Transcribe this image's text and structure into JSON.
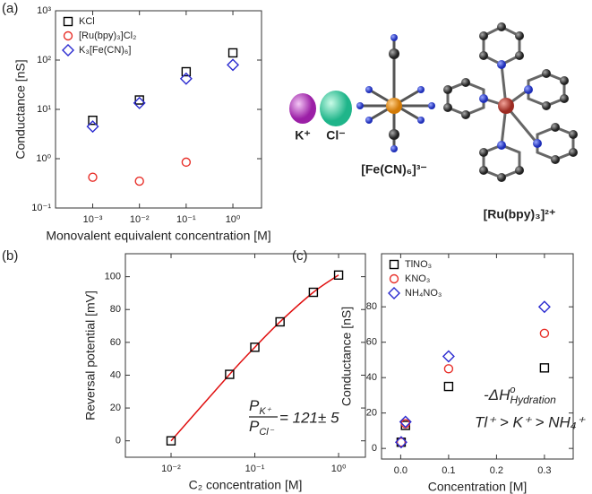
{
  "panel_labels": [
    "(a)",
    "(b)",
    "(c)"
  ],
  "molecule_labels": [
    "K⁺",
    "Cl⁻",
    "[Fe(CN)₆]³⁻",
    "[Ru(bpy)₃]²⁺"
  ],
  "chart_data": [
    {
      "type": "scatter",
      "xlabel": "Monovalent equivalent concentration [M]",
      "ylabel": "Conductance [nS]",
      "xlog": true,
      "ylog": true,
      "xlim": [
        0.00016,
        4.1
      ],
      "ylim": [
        0.1,
        1000
      ],
      "xticks": [
        {
          "value": 0.001,
          "label": "10⁻³"
        },
        {
          "value": 0.01,
          "label": "10⁻²"
        },
        {
          "value": 0.1,
          "label": "10⁻¹"
        },
        {
          "value": 1,
          "label": "10⁰"
        }
      ],
      "yticks": [
        {
          "value": 0.1,
          "label": "10⁻¹"
        },
        {
          "value": 1,
          "label": "10⁰"
        },
        {
          "value": 10,
          "label": "10¹"
        },
        {
          "value": 100,
          "label": "10²"
        },
        {
          "value": 1000,
          "label": "10³"
        }
      ],
      "legend": "upper left",
      "series": [
        {
          "name": "KCl",
          "color": "#000000",
          "marker": "square",
          "x": [
            0.001,
            0.01,
            0.1,
            1
          ],
          "values": [
            6,
            15.5,
            58,
            140
          ]
        },
        {
          "name": "[Ru(bpy)₃]Cl₂",
          "color": "#e8302a",
          "marker": "circle",
          "x": [
            0.001,
            0.01,
            0.1
          ],
          "values": [
            0.42,
            0.35,
            0.85
          ]
        },
        {
          "name": "K₃[Fe(CN)₆]",
          "color": "#2b2bd0",
          "marker": "diamond",
          "x": [
            0.001,
            0.01,
            0.1,
            1
          ],
          "values": [
            4.5,
            13.5,
            42,
            80
          ]
        }
      ]
    },
    {
      "type": "scatter",
      "xlabel": "C₂ concentration [M]",
      "ylabel": "Reversal potential [mV]",
      "xlog": true,
      "ylog": false,
      "xlim": [
        0.00285,
        2.09
      ],
      "ylim": [
        -10,
        114
      ],
      "xticks": [
        {
          "value": 0.01,
          "label": "10⁻²"
        },
        {
          "value": 0.1,
          "label": "10⁻¹"
        },
        {
          "value": 1,
          "label": "10⁰"
        }
      ],
      "yticks": [
        0,
        20,
        40,
        60,
        80,
        100
      ],
      "series": [
        {
          "color": "#000000",
          "marker": "square",
          "line_color": "#e01010",
          "x": [
            0.01,
            0.05,
            0.1,
            0.2,
            0.5,
            1
          ],
          "values": [
            0,
            40.5,
            57,
            72.5,
            90.5,
            101
          ]
        }
      ],
      "annotation": {
        "numerator": "P",
        "numerator_sub": "K⁺",
        "denominator": "P",
        "denominator_sub": "Cl⁻",
        "value": "= 121± 5"
      }
    },
    {
      "type": "scatter",
      "xlabel": "Concentration [M]",
      "ylabel": "Conductance [nS]",
      "xlog": false,
      "ylog": false,
      "xlim": [
        -0.04,
        0.36
      ],
      "ylim": [
        -6,
        110
      ],
      "xticks": [
        {
          "value": 0,
          "label": "0.0"
        },
        {
          "value": 0.1,
          "label": "0.1"
        },
        {
          "value": 0.2,
          "label": "0.2"
        },
        {
          "value": 0.3,
          "label": "0.3"
        }
      ],
      "yticks": [
        0,
        20,
        40,
        60,
        80
      ],
      "legend": "upper left",
      "series": [
        {
          "name": "TlNO₃",
          "color": "#000000",
          "marker": "square",
          "x": [
            0.001,
            0.01,
            0.1,
            0.3
          ],
          "values": [
            3.5,
            13,
            35,
            45.5
          ]
        },
        {
          "name": "KNO₃",
          "color": "#e8302a",
          "marker": "circle",
          "x": [
            0.001,
            0.01,
            0.1,
            0.3
          ],
          "values": [
            3.5,
            14,
            45,
            65
          ]
        },
        {
          "name": "NH₄NO₃",
          "color": "#2b2bd0",
          "marker": "diamond",
          "x": [
            0.001,
            0.01,
            0.1,
            0.3
          ],
          "values": [
            3.5,
            15,
            52,
            80
          ]
        }
      ],
      "annotation": {
        "main": "-ΔH",
        "sup": "o",
        "sub": "Hydration",
        "order": "Tl⁺ > K⁺ > NH₄⁺"
      }
    }
  ]
}
